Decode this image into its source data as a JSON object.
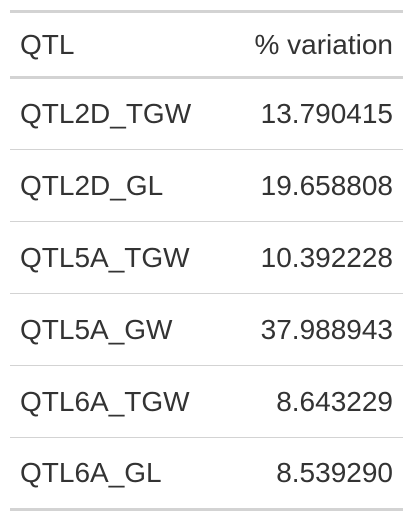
{
  "table": {
    "headers": {
      "qtl": "QTL",
      "variation": "% variation"
    },
    "rows": [
      {
        "qtl": "QTL2D_TGW",
        "variation": "13.790415"
      },
      {
        "qtl": "QTL2D_GL",
        "variation": "19.658808"
      },
      {
        "qtl": "QTL5A_TGW",
        "variation": "10.392228"
      },
      {
        "qtl": "QTL5A_GW",
        "variation": "37.988943"
      },
      {
        "qtl": "QTL6A_TGW",
        "variation": "8.643229"
      },
      {
        "qtl": "QTL6A_GL",
        "variation": "8.539290"
      }
    ]
  }
}
